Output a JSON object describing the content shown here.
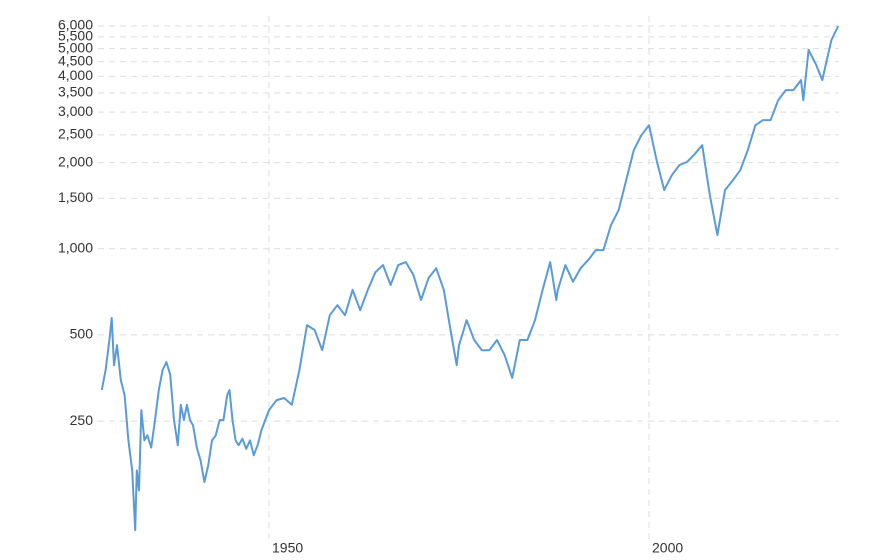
{
  "chart_data": {
    "type": "line",
    "log_scale": true,
    "grid": true,
    "xlim": [
      1927.5,
      2025
    ],
    "xticks": [
      1950,
      2000
    ],
    "ylim": [
      100,
      6000
    ],
    "yticks": [
      250,
      500,
      {
        "value": 1000,
        "label": "1,000"
      },
      {
        "value": 1500,
        "label": "1,500"
      },
      {
        "value": 2000,
        "label": "2,000"
      },
      {
        "value": 2500,
        "label": "2,500"
      },
      {
        "value": 3000,
        "label": "3,000"
      },
      {
        "value": 3500,
        "label": "3,500"
      },
      {
        "value": 4000,
        "label": "4,000"
      },
      {
        "value": 4500,
        "label": "4,500"
      },
      {
        "value": 5000,
        "label": "5,000"
      },
      {
        "value": 5500,
        "label": "5,500"
      },
      {
        "value": 6000,
        "label": "6,000"
      }
    ],
    "x": [
      1928.0,
      1928.5,
      1929.0,
      1929.3,
      1929.6,
      1930.0,
      1930.5,
      1931.0,
      1931.5,
      1932.0,
      1932.4,
      1932.6,
      1932.9,
      1933.2,
      1933.6,
      1934.0,
      1934.5,
      1935.0,
      1935.5,
      1936.0,
      1936.5,
      1937.0,
      1937.5,
      1938.0,
      1938.4,
      1938.8,
      1939.2,
      1939.6,
      1940.0,
      1940.5,
      1941.0,
      1941.5,
      1942.0,
      1942.5,
      1943.0,
      1943.5,
      1944.0,
      1944.5,
      1944.8,
      1945.2,
      1945.6,
      1946.0,
      1946.5,
      1947.0,
      1947.5,
      1948.0,
      1948.5,
      1949.0,
      1949.5,
      1950.0,
      1951,
      1952,
      1953,
      1954,
      1955,
      1956,
      1957,
      1958,
      1959,
      1960,
      1961,
      1962,
      1963,
      1964,
      1965,
      1966,
      1967,
      1968,
      1969,
      1970,
      1971,
      1972,
      1973,
      1974,
      1974.7,
      1975,
      1976,
      1977,
      1978,
      1979,
      1980,
      1981,
      1982,
      1983,
      1984,
      1985,
      1986,
      1987,
      1987.8,
      1988,
      1989,
      1990,
      1991,
      1992,
      1993,
      1994,
      1995,
      1996,
      1997,
      1998,
      1999,
      2000,
      2001,
      2002,
      2003,
      2004,
      2005,
      2006,
      2007,
      2008,
      2009,
      2010,
      2011,
      2012,
      2013,
      2014,
      2015,
      2016,
      2017,
      2018,
      2019,
      2020,
      2020.3,
      2021,
      2022,
      2022.8,
      2023,
      2024,
      2024.9
    ],
    "series": [
      {
        "color": "#5b9bd5",
        "values": [
          321,
          377,
          480,
          573,
          392,
          460,
          348,
          308,
          214,
          168,
          104,
          168,
          143,
          273,
          214,
          223,
          202,
          252,
          321,
          377,
          402,
          363,
          252,
          206,
          285,
          252,
          285,
          252,
          242,
          202,
          182,
          153,
          175,
          214,
          223,
          252,
          252,
          308,
          321,
          252,
          214,
          206,
          217,
          200,
          214,
          190,
          206,
          232,
          252,
          273,
          296,
          301,
          285,
          377,
          541,
          520,
          442,
          586,
          635,
          586,
          718,
          610,
          718,
          828,
          877,
          747,
          877,
          898,
          810,
          662,
          791,
          855,
          718,
          499,
          392,
          460,
          563,
          480,
          442,
          442,
          480,
          425,
          354,
          480,
          480,
          563,
          718,
          898,
          662,
          718,
          877,
          767,
          855,
          913,
          989,
          989,
          1210,
          1364,
          1737,
          2212,
          2493,
          2702,
          2039,
          1603,
          1807,
          1960,
          2010,
          2140,
          2300,
          1541,
          1116,
          1603,
          1730,
          1880,
          2212,
          2702,
          2815,
          2815,
          3302,
          3582,
          3582,
          3882,
          3302,
          4951,
          4387,
          3882,
          4100,
          5356,
          6000
        ]
      }
    ]
  }
}
